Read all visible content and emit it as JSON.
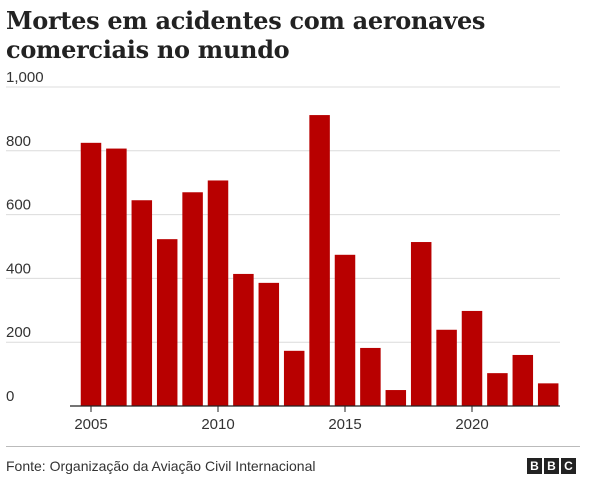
{
  "title": "Mortes em acidentes com aeronaves comerciais no mundo",
  "source": "Fonte: Organização da Aviação Civil Internacional",
  "logo": [
    "B",
    "B",
    "C"
  ],
  "colors": {
    "bar": "#b80000",
    "grid": "#dcdcdc",
    "axis": "#222222"
  },
  "chart_data": {
    "type": "bar",
    "title": "Mortes em acidentes com aeronaves comerciais no mundo",
    "categories": [
      2005,
      2006,
      2007,
      2008,
      2009,
      2010,
      2011,
      2012,
      2013,
      2014,
      2015,
      2016,
      2017,
      2018,
      2019,
      2020,
      2021,
      2022,
      2023
    ],
    "values": [
      825,
      807,
      645,
      523,
      670,
      707,
      414,
      386,
      173,
      912,
      474,
      182,
      50,
      514,
      239,
      298,
      103,
      160,
      71
    ],
    "ylim": [
      0,
      1000
    ],
    "yticks": [
      0,
      200,
      400,
      600,
      800,
      1000
    ],
    "ytick_labels": [
      "0",
      "200",
      "400",
      "600",
      "800",
      "1,000"
    ],
    "xticks": [
      2005,
      2010,
      2015,
      2020
    ],
    "xtick_labels": [
      "2005",
      "2010",
      "2015",
      "2020"
    ],
    "xlabel": "",
    "ylabel": "",
    "grid": true
  }
}
